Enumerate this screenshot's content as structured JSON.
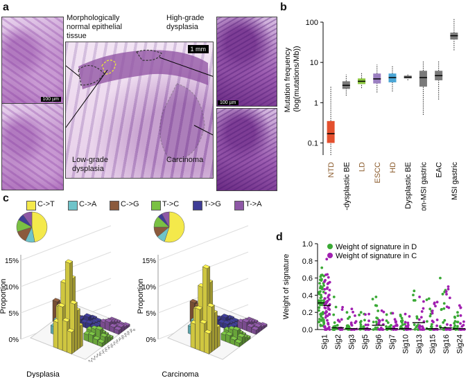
{
  "panels": {
    "a": "a",
    "b": "b",
    "c": "c",
    "d": "d"
  },
  "panel_a": {
    "label_normal": "Morphologically normal epithelial tissue",
    "label_high": "High-grade dysplasia",
    "label_low": "Low-grade dysplasia",
    "label_carcinoma": "Carcinoma",
    "scale_main": "1 mm",
    "scale_small_1": "100 µm",
    "scale_small_2": "100 µm"
  },
  "colors": {
    "NTD": "#e4502e",
    "gray": "#7a7a7a",
    "LD": "#8cc63f",
    "ESCC": "#9b7fc1",
    "HD": "#4aa6d6",
    "CtoT": "#f4e94b",
    "CtoA": "#6fc3c9",
    "CtoG": "#8b5a3c",
    "TtoC": "#7ac143",
    "TtoG": "#3f3d96",
    "TtoA": "#8e58a6",
    "green_dot": "#3aa935",
    "purple_dot": "#a01fb0",
    "brown_label": "#8a5a2b"
  },
  "chart_data": [
    {
      "panel": "b",
      "type": "box",
      "ylabel": "Mutation frequency (log(mutations/Mb))",
      "yscale": "log",
      "ylim": [
        0.05,
        100
      ],
      "yticks": [
        0.1,
        1,
        10,
        100
      ],
      "ytick_labels": [
        "0.1",
        "1",
        "10",
        "100"
      ],
      "categories": [
        "NTD",
        "Non-dysplastic BE",
        "LD",
        "ESCC",
        "HD",
        "Dysplastic BE",
        "Non-MSI gastric",
        "EAC",
        "MSI gastric"
      ],
      "label_colors": [
        "brown",
        "black",
        "brown",
        "brown",
        "brown",
        "black",
        "black",
        "black",
        "black"
      ],
      "box_colors": [
        "NTD",
        "gray",
        "LD",
        "ESCC",
        "HD",
        "gray",
        "gray",
        "gray",
        "gray"
      ],
      "boxes": [
        {
          "min": 0.05,
          "q1": 0.1,
          "median": 0.17,
          "q3": 0.35,
          "max": 2.5
        },
        {
          "min": 1.5,
          "q1": 2.2,
          "median": 2.7,
          "q3": 3.4,
          "max": 5.0
        },
        {
          "min": 2.3,
          "q1": 2.9,
          "median": 3.4,
          "q3": 4.0,
          "max": 5.5
        },
        {
          "min": 1.8,
          "q1": 3.0,
          "median": 3.9,
          "q3": 5.3,
          "max": 8.8
        },
        {
          "min": 1.9,
          "q1": 3.2,
          "median": 4.2,
          "q3": 5.3,
          "max": 8.0
        },
        {
          "min": 3.6,
          "q1": 4.0,
          "median": 4.3,
          "q3": 4.7,
          "max": 5.0
        },
        {
          "min": 0.5,
          "q1": 2.5,
          "median": 4.2,
          "q3": 6.2,
          "max": 10.5
        },
        {
          "min": 1.2,
          "q1": 3.6,
          "median": 4.7,
          "q3": 6.2,
          "max": 11.0
        },
        {
          "min": 20,
          "q1": 37,
          "median": 46,
          "q3": 55,
          "max": 120
        }
      ]
    },
    {
      "panel": "c",
      "type": "bar3d",
      "legend": [
        "C->T",
        "C->A",
        "C->G",
        "T->C",
        "T->G",
        "T->A"
      ],
      "legend_colors": [
        "CtoT",
        "CtoA",
        "CtoG",
        "TtoC",
        "TtoG",
        "TtoA"
      ],
      "zlabel": "Proportion",
      "zticks": [
        "0%",
        "5%",
        "10%",
        "15%"
      ],
      "context_labels": [
        "T.A",
        "T.C",
        "T.T",
        "T.G",
        "C.A",
        "C.C",
        "C.T",
        "C.G",
        "A.A",
        "A.C",
        "A.T",
        "A.G",
        "G.A",
        "G.C",
        "G.T",
        "G.G"
      ],
      "plots": [
        {
          "name": "Dysplasia",
          "pie": [
            47,
            10,
            13,
            13,
            7,
            10
          ],
          "class_max": {
            "C->T": 16.5,
            "C->A": 2.5,
            "C->G": 4.0,
            "T->C": 2.5,
            "T->G": 1.8,
            "T->A": 2.0
          }
        },
        {
          "name": "Carcinoma",
          "pie": [
            55,
            9,
            11,
            12,
            5,
            8
          ],
          "class_max": {
            "C->T": 15.5,
            "C->A": 2.4,
            "C->G": 3.8,
            "T->C": 2.4,
            "T->G": 1.7,
            "T->A": 2.0
          }
        }
      ]
    },
    {
      "panel": "d",
      "type": "strip",
      "ylabel": "Weight of signature",
      "ylim": [
        0,
        1.0
      ],
      "yticks": [
        0.0,
        0.2,
        0.4,
        0.6,
        0.8,
        1.0
      ],
      "ytick_labels": [
        "0.0",
        "0.2",
        "0.4",
        "0.6",
        "0.8",
        "1.0"
      ],
      "categories": [
        "Sig1",
        "Sig2",
        "Sig3",
        "Sig5",
        "Sig6",
        "Sig7",
        "Sig10",
        "Sig13",
        "Sig15",
        "Sig16",
        "Sig24"
      ],
      "legend": [
        "Weight of signature in D",
        "Weight of signature in C"
      ],
      "series": [
        {
          "name": "D",
          "medians": [
            0.31,
            0.02,
            0.01,
            0.01,
            0.05,
            0.01,
            0.01,
            0.08,
            0.01,
            0.02,
            0.01
          ],
          "maxima": [
            0.72,
            0.38,
            0.2,
            0.2,
            0.38,
            0.19,
            0.17,
            0.45,
            0.36,
            0.6,
            0.2
          ]
        },
        {
          "name": "C",
          "medians": [
            0.28,
            0.02,
            0.01,
            0.01,
            0.05,
            0.01,
            0.01,
            0.08,
            0.01,
            0.02,
            0.01
          ],
          "maxima": [
            0.82,
            0.26,
            0.24,
            0.18,
            0.22,
            0.19,
            0.18,
            0.38,
            0.32,
            0.5,
            0.28
          ]
        }
      ]
    }
  ]
}
